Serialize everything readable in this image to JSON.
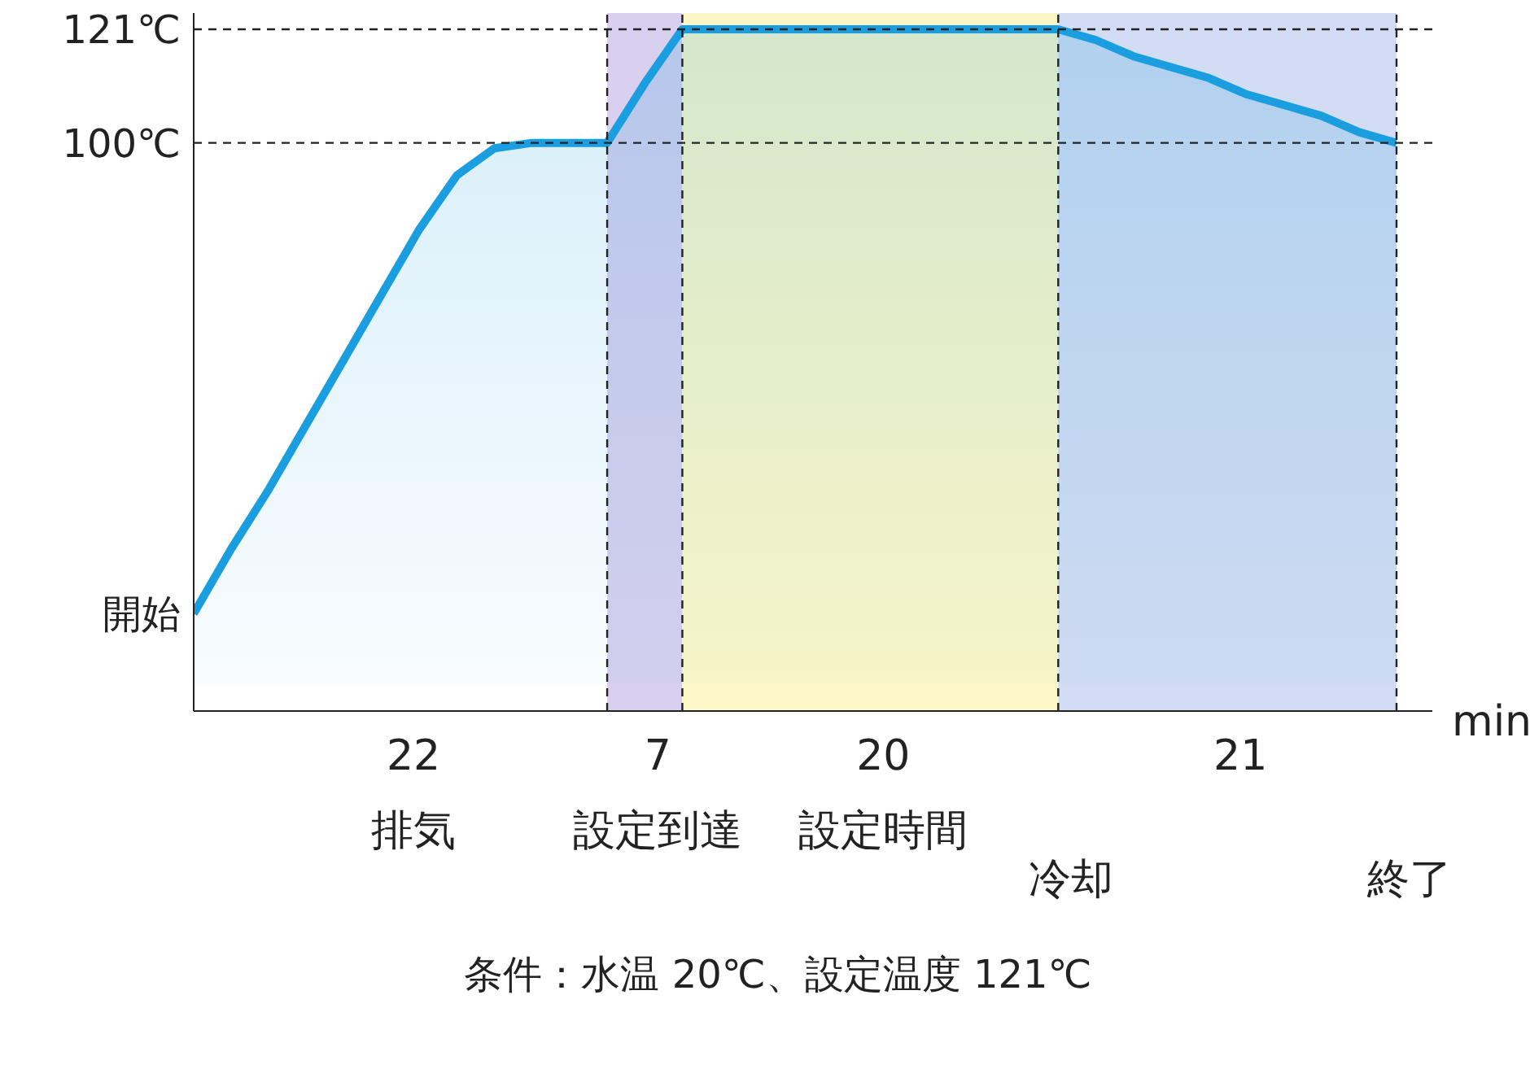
{
  "chart_data": {
    "type": "area",
    "xlabel": "min",
    "categories": [
      null,
      null,
      null,
      null,
      null,
      null,
      null,
      null,
      null,
      null,
      null,
      null,
      null,
      null,
      null,
      null,
      null,
      null,
      null,
      null,
      null,
      null,
      null,
      null,
      null,
      null,
      null,
      null,
      null,
      null,
      null,
      null,
      null
    ],
    "series": [
      {
        "color": "#1a9ee0",
        "values": [
          13,
          25,
          36,
          48,
          60,
          72,
          84,
          94,
          99,
          100,
          100,
          100,
          111,
          121,
          121,
          121,
          121,
          121,
          121,
          121,
          121,
          121,
          121,
          121,
          119,
          116,
          114,
          112,
          109,
          107,
          105,
          102,
          100
        ]
      }
    ],
    "ylim": [
      -5,
      124
    ],
    "yticks": [
      {
        "value": 13,
        "label": "開始"
      },
      {
        "value": 100,
        "label": "100℃"
      },
      {
        "value": 121,
        "label": "121℃"
      }
    ],
    "grid": "x",
    "ref_lines": [
      {
        "axis": "y",
        "value": 121,
        "line_style": "dashed",
        "color": "#222222"
      },
      {
        "axis": "y",
        "value": 100,
        "line_style": "dashed",
        "color": "#222222"
      }
    ],
    "annotations": [
      "22",
      "7",
      "20",
      "21",
      "排気",
      "設定到達",
      "設定時間",
      "冷却",
      "終了",
      "条件：水温 20℃、設定温度 121℃"
    ]
  }
}
